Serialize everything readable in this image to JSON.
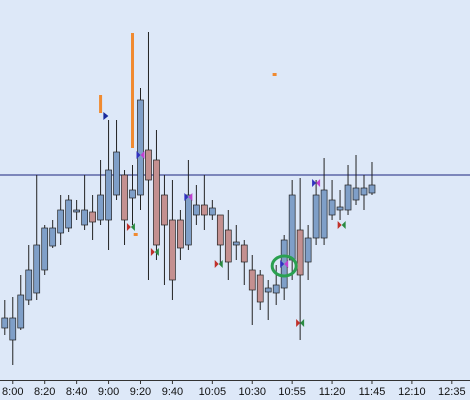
{
  "chart_data": {
    "type": "candlestick",
    "x": [
      475,
      480,
      485,
      490,
      495,
      500,
      505,
      510,
      515,
      520,
      525,
      530,
      535,
      540,
      545,
      550,
      555,
      560,
      565,
      570,
      575,
      580,
      585,
      590,
      595,
      600,
      605,
      610,
      615,
      620,
      625,
      630,
      635,
      640,
      645,
      650,
      655,
      660,
      665,
      670,
      675,
      680,
      685,
      690,
      695,
      700,
      705
    ],
    "open": [
      52,
      40,
      52,
      80,
      87,
      110,
      134,
      147,
      152,
      168,
      155,
      168,
      160,
      160,
      185,
      205,
      182,
      185,
      230,
      220,
      185,
      160,
      160,
      135,
      165,
      175,
      165,
      165,
      150,
      135,
      135,
      110,
      105,
      88,
      87,
      92,
      120,
      150,
      118,
      142,
      142,
      165,
      170,
      170,
      180,
      185,
      187
    ],
    "high": [
      80,
      83,
      105,
      135,
      205,
      155,
      160,
      185,
      185,
      180,
      205,
      185,
      220,
      260,
      260,
      210,
      215,
      292,
      348,
      250,
      205,
      200,
      170,
      220,
      195,
      205,
      180,
      165,
      170,
      155,
      140,
      125,
      110,
      100,
      115,
      145,
      200,
      202,
      155,
      200,
      222,
      200,
      190,
      215,
      225,
      205,
      218
    ],
    "low": [
      45,
      15,
      50,
      75,
      80,
      105,
      132,
      135,
      148,
      160,
      150,
      140,
      155,
      130,
      180,
      135,
      155,
      170,
      100,
      120,
      95,
      80,
      120,
      130,
      155,
      150,
      160,
      115,
      100,
      120,
      95,
      55,
      70,
      60,
      75,
      80,
      100,
      40,
      100,
      135,
      135,
      160,
      160,
      165,
      175,
      170,
      185
    ],
    "close": [
      62,
      62,
      85,
      110,
      135,
      152,
      152,
      170,
      180,
      170,
      170,
      158,
      185,
      210,
      228,
      160,
      190,
      280,
      200,
      135,
      155,
      100,
      132,
      185,
      175,
      165,
      172,
      135,
      118,
      138,
      118,
      90,
      78,
      92,
      95,
      140,
      185,
      105,
      142,
      185,
      190,
      180,
      173,
      195,
      192,
      192,
      195
    ],
    "up_color": "#7f9fc8",
    "down_color": "#c49090",
    "xlim": [
      472,
      757
    ],
    "ylim": [
      0,
      380
    ],
    "xticks": [
      {
        "value": 480,
        "label": "8:00"
      },
      {
        "value": 500,
        "label": "8:20"
      },
      {
        "value": 520,
        "label": "8:40"
      },
      {
        "value": 540,
        "label": "9:00"
      },
      {
        "value": 560,
        "label": "9:20"
      },
      {
        "value": 580,
        "label": "9:40"
      },
      {
        "value": 605,
        "label": "10:05"
      },
      {
        "value": 630,
        "label": "10:30"
      },
      {
        "value": 655,
        "label": "10:55"
      },
      {
        "value": 680,
        "label": "11:20"
      },
      {
        "value": 705,
        "label": "11:45"
      },
      {
        "value": 730,
        "label": "12:10"
      },
      {
        "value": 755,
        "label": "12:35"
      }
    ],
    "hlines": [
      205
    ],
    "hline_color": "#1a237e",
    "signal_bars": [
      {
        "x": 535,
        "high": 285,
        "low": 267
      },
      {
        "x": 555,
        "high": 347,
        "low": 232
      }
    ],
    "signal_bar_color": "#f08a30",
    "signals": [
      {
        "x": 644,
        "y": 305,
        "shape": "dot",
        "colors": [
          "#f08a30"
        ]
      },
      {
        "x": 538,
        "y": 264,
        "shape": "triangle",
        "colors": [
          "#1a2a9c"
        ]
      },
      {
        "x": 557,
        "y": 145,
        "shape": "dot",
        "colors": [
          "#f08a30"
        ]
      },
      {
        "x": 560,
        "y": 225,
        "shape": "bowtie",
        "colors": [
          "#3030c0",
          "#c040d0"
        ]
      },
      {
        "x": 590,
        "y": 183,
        "shape": "bowtie",
        "colors": [
          "#3030c0",
          "#c040d0"
        ]
      },
      {
        "x": 650,
        "y": 116,
        "shape": "bowtie",
        "colors": [
          "#3030c0",
          "#c040d0"
        ]
      },
      {
        "x": 670,
        "y": 197,
        "shape": "bowtie",
        "colors": [
          "#3030c0",
          "#c040d0"
        ]
      },
      {
        "x": 554,
        "y": 153,
        "shape": "bowtie",
        "colors": [
          "#c0302a",
          "#2a8a40"
        ]
      },
      {
        "x": 569,
        "y": 128,
        "shape": "bowtie",
        "colors": [
          "#c0302a",
          "#2a8a40"
        ]
      },
      {
        "x": 609,
        "y": 116,
        "shape": "bowtie",
        "colors": [
          "#c0302a",
          "#2a8a40"
        ]
      },
      {
        "x": 660,
        "y": 57,
        "shape": "bowtie",
        "colors": [
          "#c0302a",
          "#2a8a40"
        ]
      },
      {
        "x": 686,
        "y": 155,
        "shape": "bowtie",
        "colors": [
          "#c0302a",
          "#2a8a40"
        ]
      },
      {
        "x": 650,
        "y": 114,
        "shape": "ring",
        "colors": [
          "#2aa050"
        ]
      }
    ]
  }
}
